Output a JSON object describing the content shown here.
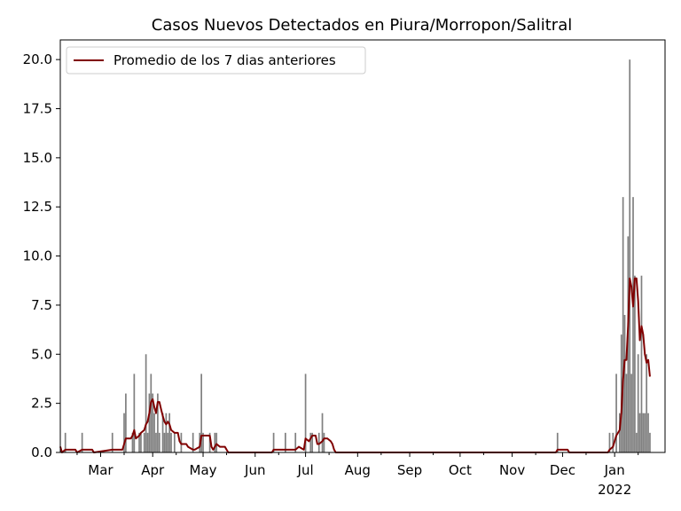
{
  "chart_data": {
    "type": "bar",
    "title": "Casos Nuevos Detectados en Piura/Morropon/Salitral",
    "xlabel": "",
    "ylabel": "",
    "ylim": [
      0,
      21
    ],
    "xlim": [
      "2021-02-05",
      "2022-01-31"
    ],
    "grid": false,
    "legend_position": "top-left",
    "bar_color": "#808080",
    "line_color": "#800000",
    "y_ticks": [
      "0.0",
      "2.5",
      "5.0",
      "7.5",
      "10.0",
      "12.5",
      "15.0",
      "17.5",
      "20.0"
    ],
    "x_ticks": [
      {
        "date": "2021-03-01",
        "label": "Mar"
      },
      {
        "date": "2021-04-01",
        "label": "Apr"
      },
      {
        "date": "2021-05-01",
        "label": "May"
      },
      {
        "date": "2021-06-01",
        "label": "Jun"
      },
      {
        "date": "2021-07-01",
        "label": "Jul"
      },
      {
        "date": "2021-08-01",
        "label": "Aug"
      },
      {
        "date": "2021-09-01",
        "label": "Sep"
      },
      {
        "date": "2021-10-01",
        "label": "Oct"
      },
      {
        "date": "2021-11-01",
        "label": "Nov"
      },
      {
        "date": "2021-12-01",
        "label": "Dec"
      },
      {
        "date": "2022-01-01",
        "label": "Jan"
      }
    ],
    "year_label": "2022",
    "series": [
      {
        "kind": "bar",
        "points": [
          [
            "2021-02-08",
            1
          ],
          [
            "2021-02-18",
            1
          ],
          [
            "2021-03-08",
            1
          ],
          [
            "2021-03-15",
            2
          ],
          [
            "2021-03-16",
            3
          ],
          [
            "2021-03-20",
            1
          ],
          [
            "2021-03-21",
            4
          ],
          [
            "2021-03-24",
            1
          ],
          [
            "2021-03-25",
            1
          ],
          [
            "2021-03-27",
            1
          ],
          [
            "2021-03-28",
            5
          ],
          [
            "2021-03-29",
            1
          ],
          [
            "2021-03-30",
            3
          ],
          [
            "2021-03-31",
            4
          ],
          [
            "2021-04-01",
            3
          ],
          [
            "2021-04-02",
            2
          ],
          [
            "2021-04-03",
            1
          ],
          [
            "2021-04-04",
            3
          ],
          [
            "2021-04-05",
            1
          ],
          [
            "2021-04-07",
            2
          ],
          [
            "2021-04-08",
            1
          ],
          [
            "2021-04-09",
            2
          ],
          [
            "2021-04-10",
            1
          ],
          [
            "2021-04-11",
            2
          ],
          [
            "2021-04-12",
            1
          ],
          [
            "2021-04-14",
            1
          ],
          [
            "2021-04-18",
            1
          ],
          [
            "2021-04-25",
            1
          ],
          [
            "2021-04-29",
            1
          ],
          [
            "2021-04-30",
            4
          ],
          [
            "2021-05-01",
            1
          ],
          [
            "2021-05-05",
            1
          ],
          [
            "2021-05-08",
            1
          ],
          [
            "2021-05-09",
            1
          ],
          [
            "2021-06-12",
            1
          ],
          [
            "2021-06-19",
            1
          ],
          [
            "2021-06-25",
            1
          ],
          [
            "2021-07-01",
            4
          ],
          [
            "2021-07-04",
            1
          ],
          [
            "2021-07-05",
            1
          ],
          [
            "2021-07-09",
            1
          ],
          [
            "2021-07-11",
            2
          ],
          [
            "2021-07-12",
            1
          ],
          [
            "2021-11-28",
            1
          ],
          [
            "2021-12-29",
            1
          ],
          [
            "2021-12-31",
            1
          ],
          [
            "2022-01-02",
            4
          ],
          [
            "2022-01-04",
            2
          ],
          [
            "2022-01-05",
            6
          ],
          [
            "2022-01-06",
            13
          ],
          [
            "2022-01-07",
            7
          ],
          [
            "2022-01-08",
            4
          ],
          [
            "2022-01-09",
            11
          ],
          [
            "2022-01-10",
            20
          ],
          [
            "2022-01-11",
            4
          ],
          [
            "2022-01-12",
            13
          ],
          [
            "2022-01-13",
            9
          ],
          [
            "2022-01-14",
            1
          ],
          [
            "2022-01-15",
            5
          ],
          [
            "2022-01-16",
            2
          ],
          [
            "2022-01-17",
            9
          ],
          [
            "2022-01-18",
            2
          ],
          [
            "2022-01-19",
            2
          ],
          [
            "2022-01-20",
            5
          ],
          [
            "2022-01-21",
            2
          ],
          [
            "2022-01-22",
            1
          ]
        ]
      },
      {
        "kind": "line",
        "name": "Promedio de los 7 dias anteriores",
        "points": [
          [
            "2021-02-05",
            0.3
          ],
          [
            "2021-02-06",
            0.0
          ],
          [
            "2021-02-08",
            0.14
          ],
          [
            "2021-02-14",
            0.14
          ],
          [
            "2021-02-15",
            0.0
          ],
          [
            "2021-02-18",
            0.14
          ],
          [
            "2021-02-24",
            0.14
          ],
          [
            "2021-02-25",
            0.0
          ],
          [
            "2021-03-08",
            0.14
          ],
          [
            "2021-03-14",
            0.14
          ],
          [
            "2021-03-15",
            0.43
          ],
          [
            "2021-03-16",
            0.71
          ],
          [
            "2021-03-19",
            0.71
          ],
          [
            "2021-03-20",
            0.86
          ],
          [
            "2021-03-21",
            1.14
          ],
          [
            "2021-03-22",
            0.71
          ],
          [
            "2021-03-24",
            0.86
          ],
          [
            "2021-03-25",
            1.0
          ],
          [
            "2021-03-27",
            1.14
          ],
          [
            "2021-03-28",
            1.43
          ],
          [
            "2021-03-29",
            1.57
          ],
          [
            "2021-03-30",
            2.0
          ],
          [
            "2021-03-31",
            2.57
          ],
          [
            "2021-04-01",
            2.71
          ],
          [
            "2021-04-02",
            2.3
          ],
          [
            "2021-04-03",
            2.0
          ],
          [
            "2021-04-04",
            2.57
          ],
          [
            "2021-04-05",
            2.57
          ],
          [
            "2021-04-06",
            2.2
          ],
          [
            "2021-04-07",
            1.86
          ],
          [
            "2021-04-08",
            1.57
          ],
          [
            "2021-04-09",
            1.43
          ],
          [
            "2021-04-10",
            1.57
          ],
          [
            "2021-04-11",
            1.43
          ],
          [
            "2021-04-12",
            1.14
          ],
          [
            "2021-04-14",
            1.0
          ],
          [
            "2021-04-16",
            1.0
          ],
          [
            "2021-04-17",
            0.57
          ],
          [
            "2021-04-18",
            0.43
          ],
          [
            "2021-04-21",
            0.43
          ],
          [
            "2021-04-22",
            0.29
          ],
          [
            "2021-04-25",
            0.14
          ],
          [
            "2021-04-26",
            0.14
          ],
          [
            "2021-04-29",
            0.29
          ],
          [
            "2021-04-30",
            0.86
          ],
          [
            "2021-05-02",
            0.86
          ],
          [
            "2021-05-05",
            0.86
          ],
          [
            "2021-05-06",
            0.29
          ],
          [
            "2021-05-07",
            0.14
          ],
          [
            "2021-05-08",
            0.29
          ],
          [
            "2021-05-09",
            0.43
          ],
          [
            "2021-05-11",
            0.29
          ],
          [
            "2021-05-14",
            0.29
          ],
          [
            "2021-05-15",
            0.14
          ],
          [
            "2021-05-16",
            0.0
          ],
          [
            "2021-06-11",
            0.0
          ],
          [
            "2021-06-12",
            0.14
          ],
          [
            "2021-06-18",
            0.14
          ],
          [
            "2021-06-19",
            0.14
          ],
          [
            "2021-06-25",
            0.14
          ],
          [
            "2021-06-27",
            0.29
          ],
          [
            "2021-06-30",
            0.14
          ],
          [
            "2021-07-01",
            0.71
          ],
          [
            "2021-07-03",
            0.57
          ],
          [
            "2021-07-04",
            0.71
          ],
          [
            "2021-07-05",
            0.86
          ],
          [
            "2021-07-07",
            0.86
          ],
          [
            "2021-07-08",
            0.43
          ],
          [
            "2021-07-09",
            0.43
          ],
          [
            "2021-07-11",
            0.57
          ],
          [
            "2021-07-12",
            0.71
          ],
          [
            "2021-07-14",
            0.71
          ],
          [
            "2021-07-16",
            0.57
          ],
          [
            "2021-07-17",
            0.43
          ],
          [
            "2021-07-18",
            0.14
          ],
          [
            "2021-07-19",
            0.0
          ],
          [
            "2021-11-27",
            0.0
          ],
          [
            "2021-11-28",
            0.14
          ],
          [
            "2021-12-04",
            0.14
          ],
          [
            "2021-12-05",
            0.0
          ],
          [
            "2021-12-28",
            0.0
          ],
          [
            "2021-12-29",
            0.14
          ],
          [
            "2021-12-31",
            0.29
          ],
          [
            "2022-01-02",
            0.86
          ],
          [
            "2022-01-04",
            1.14
          ],
          [
            "2022-01-05",
            2.0
          ],
          [
            "2022-01-06",
            3.71
          ],
          [
            "2022-01-07",
            4.71
          ],
          [
            "2022-01-08",
            4.71
          ],
          [
            "2022-01-09",
            6.43
          ],
          [
            "2022-01-10",
            8.86
          ],
          [
            "2022-01-11",
            8.43
          ],
          [
            "2022-01-12",
            7.43
          ],
          [
            "2022-01-13",
            8.86
          ],
          [
            "2022-01-14",
            8.86
          ],
          [
            "2022-01-15",
            7.71
          ],
          [
            "2022-01-16",
            5.71
          ],
          [
            "2022-01-17",
            6.43
          ],
          [
            "2022-01-18",
            6.0
          ],
          [
            "2022-01-19",
            5.0
          ],
          [
            "2022-01-20",
            4.57
          ],
          [
            "2022-01-21",
            4.71
          ],
          [
            "2022-01-22",
            3.86
          ]
        ]
      }
    ]
  }
}
